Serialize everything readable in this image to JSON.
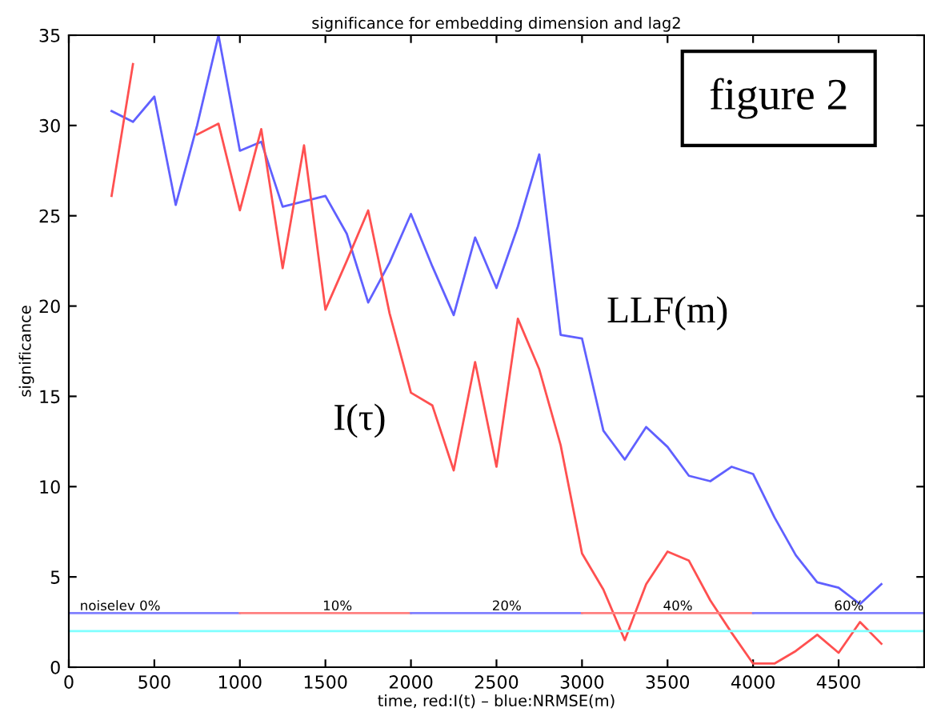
{
  "chart_data": {
    "type": "line",
    "title": "significance for embedding dimension and lag2",
    "xlabel": "time, red:I(t) – blue:NRMSE(m)",
    "ylabel": "significance",
    "xlim": [
      0,
      5000
    ],
    "ylim": [
      0,
      35
    ],
    "xticks": [
      0,
      500,
      1000,
      1500,
      2000,
      2500,
      3000,
      3500,
      4000,
      4500
    ],
    "yticks": [
      0,
      5,
      10,
      15,
      20,
      25,
      30,
      35
    ],
    "grid": false,
    "legend": false,
    "marker": "none",
    "line_style": "solid",
    "x": [
      250,
      375,
      500,
      625,
      750,
      875,
      1000,
      1125,
      1250,
      1375,
      1500,
      1625,
      1750,
      1875,
      2000,
      2125,
      2250,
      2375,
      2500,
      2625,
      2750,
      2875,
      3000,
      3125,
      3250,
      3375,
      3500,
      3625,
      3750,
      3875,
      4000,
      4125,
      4250,
      4375,
      4500,
      4625,
      4750
    ],
    "series": [
      {
        "name": "LLF(m)",
        "color": "#6060ff",
        "values": [
          30.8,
          30.2,
          31.6,
          25.6,
          30.0,
          35.0,
          28.6,
          29.1,
          25.5,
          25.8,
          26.1,
          24.0,
          20.2,
          22.4,
          25.1,
          22.2,
          19.5,
          23.8,
          21.0,
          24.4,
          28.4,
          18.4,
          18.2,
          13.1,
          11.5,
          13.3,
          12.2,
          10.6,
          10.3,
          11.1,
          10.7,
          8.3,
          6.2,
          4.7,
          4.4,
          3.5,
          4.6
        ]
      },
      {
        "name": "I(τ)",
        "color": "#ff5050",
        "values": [
          26.1,
          33.4,
          null,
          null,
          29.5,
          30.1,
          25.3,
          29.8,
          22.1,
          28.9,
          19.8,
          22.5,
          25.3,
          19.6,
          15.2,
          14.5,
          10.9,
          16.9,
          11.1,
          19.3,
          16.5,
          12.3,
          6.3,
          4.3,
          1.5,
          4.6,
          6.4,
          5.9,
          3.7,
          1.9,
          0.2,
          0.2,
          0.9,
          1.8,
          0.8,
          2.5,
          1.3
        ]
      },
      {
        "color": "#8080ff",
        "x": [
          0,
          1000
        ],
        "values": [
          3,
          3
        ]
      },
      {
        "color": "#ff8080",
        "x": [
          1000,
          2000
        ],
        "values": [
          3,
          3
        ]
      },
      {
        "color": "#8080ff",
        "x": [
          2000,
          3000
        ],
        "values": [
          3,
          3
        ]
      },
      {
        "color": "#ff8080",
        "x": [
          3000,
          4000
        ],
        "values": [
          3,
          3
        ]
      },
      {
        "color": "#8080ff",
        "x": [
          4000,
          5000
        ],
        "values": [
          3,
          3
        ]
      }
    ],
    "ref_lines": [
      {
        "axis": "y",
        "value": 2,
        "label": null,
        "color": "#80ffff"
      }
    ],
    "annotations": [
      "figure 2",
      {
        "text": "noiselev 0%",
        "x": 300,
        "y": 3
      },
      {
        "text": "10%",
        "x": 1570,
        "y": 3
      },
      {
        "text": "20%",
        "x": 2560,
        "y": 3
      },
      {
        "text": "40%",
        "x": 3560,
        "y": 3
      },
      {
        "text": "60%",
        "x": 4560,
        "y": 3
      }
    ]
  }
}
